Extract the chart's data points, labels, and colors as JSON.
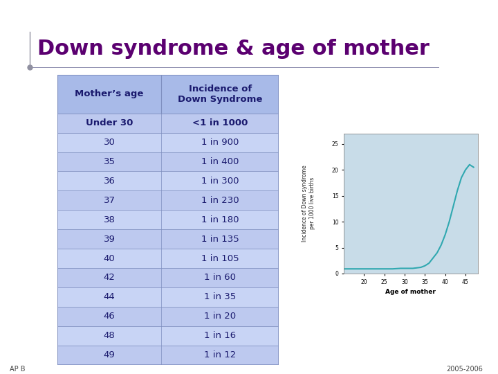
{
  "title": "Down syndrome & age of mother",
  "title_color": "#5B0070",
  "title_fontsize": 22,
  "bg_color": "#FFFFFF",
  "top_bar_color": "#2B3580",
  "top_bar2_color": "#7B82C0",
  "table_header": [
    "Mother’s age",
    "Incidence of\nDown Syndrome"
  ],
  "table_rows": [
    [
      "Under 30",
      "<1 in 1000"
    ],
    [
      "30",
      "1 in 900"
    ],
    [
      "35",
      "1 in 400"
    ],
    [
      "36",
      "1 in 300"
    ],
    [
      "37",
      "1 in 230"
    ],
    [
      "38",
      "1 in 180"
    ],
    [
      "39",
      "1 in 135"
    ],
    [
      "40",
      "1 in 105"
    ],
    [
      "42",
      "1 in 60"
    ],
    [
      "44",
      "1 in 35"
    ],
    [
      "46",
      "1 in 20"
    ],
    [
      "48",
      "1 in 16"
    ],
    [
      "49",
      "1 in 12"
    ]
  ],
  "table_header_bg": "#A8BAE8",
  "table_row_bg_even": "#BDC9EF",
  "table_row_bg_odd": "#C8D4F5",
  "table_border_color": "#8090C0",
  "table_text_color": "#1A1A6E",
  "footer_text": "AP B",
  "footer_right": "2005-2006",
  "chart_outer_bg": "#F0DFB0",
  "chart_plot_bg": "#C8DCE8",
  "chart_line_color": "#30A8B0",
  "chart_ages": [
    15,
    17,
    19,
    21,
    23,
    25,
    27,
    29,
    30,
    31,
    32,
    33,
    34,
    35,
    36,
    37,
    38,
    39,
    40,
    41,
    42,
    43,
    44,
    45,
    46,
    47
  ],
  "chart_incidence": [
    0.9,
    0.9,
    0.9,
    0.9,
    0.9,
    0.9,
    0.9,
    1.0,
    1.0,
    1.0,
    1.0,
    1.1,
    1.2,
    1.5,
    2.0,
    3.0,
    4.0,
    5.5,
    7.5,
    10.0,
    13.0,
    16.0,
    18.5,
    20.0,
    21.0,
    20.5
  ],
  "chart_xlabel": "Age of mother",
  "chart_ylabel": "Incidence of Down syndrome\nper 1000 live births",
  "chart_xlim": [
    15,
    48
  ],
  "chart_ylim": [
    0,
    27
  ],
  "chart_xticks": [
    20,
    25,
    30,
    35,
    40,
    45
  ],
  "chart_yticks": [
    0,
    5,
    10,
    15,
    20,
    25
  ]
}
